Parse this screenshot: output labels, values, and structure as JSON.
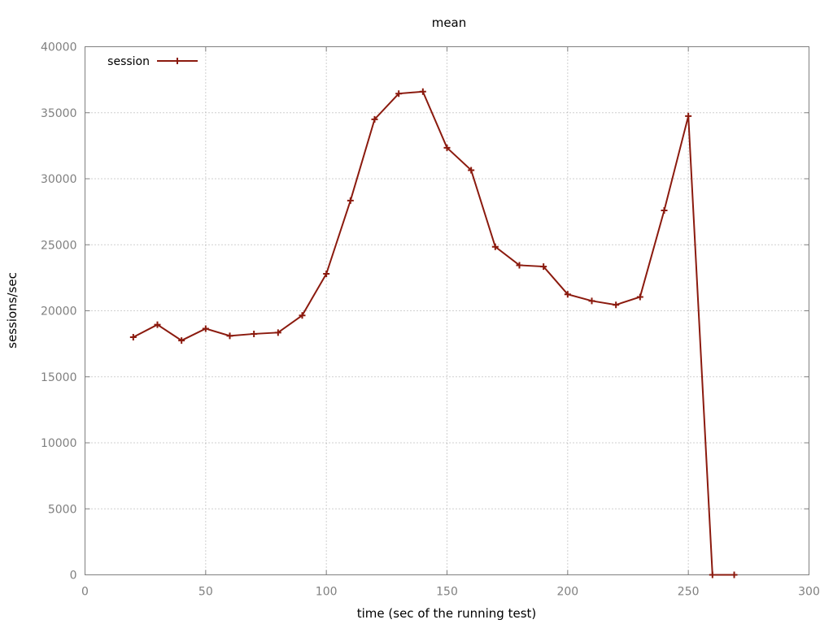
{
  "chart_data": {
    "type": "line",
    "title": "mean",
    "xlabel": "time (sec of the running test)",
    "ylabel": "sessions/sec",
    "xlim": [
      0,
      300
    ],
    "ylim": [
      0,
      40000
    ],
    "x_ticks": [
      0,
      50,
      100,
      150,
      200,
      250,
      300
    ],
    "y_ticks": [
      0,
      5000,
      10000,
      15000,
      20000,
      25000,
      30000,
      35000,
      40000
    ],
    "grid": true,
    "legend_position": "top-left",
    "series": [
      {
        "name": "session",
        "color": "#8b1a0e",
        "marker": "plus",
        "x": [
          20,
          30,
          40,
          50,
          60,
          70,
          80,
          90,
          100,
          110,
          120,
          130,
          140,
          150,
          160,
          170,
          180,
          190,
          200,
          210,
          220,
          230,
          240,
          250,
          260,
          269
        ],
        "y": [
          18000,
          18950,
          17750,
          18650,
          18100,
          18250,
          18350,
          19650,
          22800,
          28350,
          34500,
          36450,
          36600,
          32350,
          30650,
          24850,
          23450,
          23350,
          21250,
          20750,
          20450,
          21050,
          27600,
          34750,
          0,
          0
        ]
      }
    ]
  }
}
